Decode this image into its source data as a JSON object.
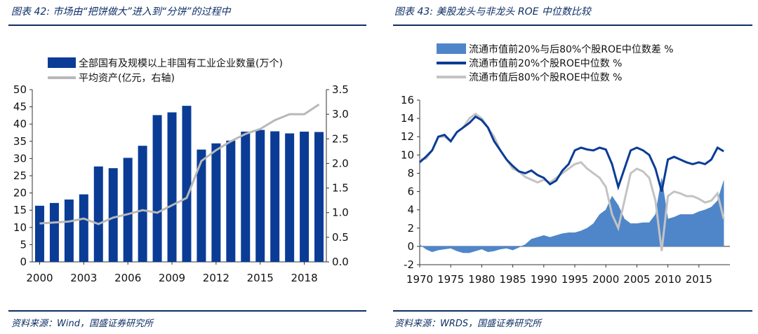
{
  "left": {
    "title": "图表 42: 市场由“把饼做大”进入到“分饼”的过程中",
    "source": "资料来源：Wind，国盛证券研究所",
    "colors": {
      "bar": "#0a3c96",
      "line": "#b8b8b8",
      "rule": "#0e2e66"
    },
    "chart_data": {
      "type": "bar",
      "x": [
        2000,
        2001,
        2002,
        2003,
        2004,
        2005,
        2006,
        2007,
        2008,
        2009,
        2010,
        2011,
        2012,
        2013,
        2014,
        2015,
        2016,
        2017,
        2018,
        2019
      ],
      "x_ticks": [
        "2000",
        "2003",
        "2006",
        "2009",
        "2012",
        "2015",
        "2018"
      ],
      "series": [
        {
          "name": "全部国有及规模以上非国有工业企业数量(万个)",
          "type": "bar",
          "axis": "left",
          "values": [
            16.3,
            17.1,
            18.1,
            19.6,
            27.7,
            27.2,
            30.2,
            33.7,
            42.6,
            43.4,
            45.3,
            32.6,
            34.4,
            35.2,
            37.8,
            38.3,
            37.9,
            37.3,
            37.8,
            37.7
          ]
        },
        {
          "name": "平均资产(亿元，右轴)",
          "type": "line",
          "axis": "right",
          "values": [
            0.78,
            0.8,
            0.82,
            0.88,
            0.77,
            0.9,
            0.97,
            1.05,
            1.0,
            1.15,
            1.3,
            2.05,
            2.27,
            2.45,
            2.6,
            2.7,
            2.88,
            3.0,
            3.0,
            3.2
          ]
        }
      ],
      "y_left": {
        "min": 0,
        "max": 50,
        "ticks": [
          "0",
          "5",
          "10",
          "15",
          "20",
          "25",
          "30",
          "35",
          "40",
          "45",
          "50"
        ]
      },
      "y_right": {
        "min": 0,
        "max": 3.5,
        "ticks": [
          "0.0",
          "0.5",
          "1.0",
          "1.5",
          "2.0",
          "2.5",
          "3.0",
          "3.5"
        ]
      },
      "legend_position": "top"
    }
  },
  "right": {
    "title": "图表 43: 美股龙头与非龙头 ROE 中位数比较",
    "source": "资料来源：WRDS，国盛证券研究所",
    "colors": {
      "area": "#4f86c9",
      "top": "#0a3c96",
      "bottom": "#c3c3c3"
    },
    "chart_data": {
      "type": "line",
      "x_ticks": [
        "1970",
        "1975",
        "1980",
        "1985",
        "1990",
        "1995",
        "2000",
        "2005",
        "2010",
        "2015"
      ],
      "x_range": [
        1970,
        2020
      ],
      "y": {
        "min": -2,
        "max": 16,
        "ticks": [
          "-2",
          "0",
          "2",
          "4",
          "6",
          "8",
          "10",
          "12",
          "14",
          "16"
        ]
      },
      "legend_position": "top",
      "series": [
        {
          "name": "流通市值前20%与后80%个股ROE中位数差 %",
          "type": "area",
          "points": [
            [
              1970,
              0.2
            ],
            [
              1971,
              -0.3
            ],
            [
              1972,
              -0.6
            ],
            [
              1973,
              -0.4
            ],
            [
              1974,
              -0.3
            ],
            [
              1975,
              -0.2
            ],
            [
              1976,
              -0.5
            ],
            [
              1977,
              -0.7
            ],
            [
              1978,
              -0.7
            ],
            [
              1979,
              -0.5
            ],
            [
              1980,
              -0.3
            ],
            [
              1981,
              -0.6
            ],
            [
              1982,
              -0.5
            ],
            [
              1983,
              -0.3
            ],
            [
              1984,
              -0.2
            ],
            [
              1985,
              -0.4
            ],
            [
              1986,
              -0.1
            ],
            [
              1987,
              0.2
            ],
            [
              1988,
              0.8
            ],
            [
              1989,
              1.0
            ],
            [
              1990,
              1.2
            ],
            [
              1991,
              1.0
            ],
            [
              1992,
              1.2
            ],
            [
              1993,
              1.4
            ],
            [
              1994,
              1.5
            ],
            [
              1995,
              1.5
            ],
            [
              1996,
              1.7
            ],
            [
              1997,
              2.0
            ],
            [
              1998,
              2.5
            ],
            [
              1999,
              3.5
            ],
            [
              2000,
              4.0
            ],
            [
              2001,
              5.5
            ],
            [
              2002,
              4.5
            ],
            [
              2003,
              3.0
            ],
            [
              2004,
              2.5
            ],
            [
              2005,
              2.5
            ],
            [
              2006,
              2.6
            ],
            [
              2007,
              2.6
            ],
            [
              2008,
              3.5
            ],
            [
              2009,
              7.5
            ],
            [
              2010,
              3.0
            ],
            [
              2011,
              3.2
            ],
            [
              2012,
              3.5
            ],
            [
              2013,
              3.5
            ],
            [
              2014,
              3.5
            ],
            [
              2015,
              3.8
            ],
            [
              2016,
              4.0
            ],
            [
              2017,
              4.3
            ],
            [
              2018,
              5.0
            ],
            [
              2019,
              7.2
            ]
          ]
        },
        {
          "name": "流通市值前20%个股ROE中位数 %",
          "type": "line",
          "points": [
            [
              1970,
              9.2
            ],
            [
              1971,
              9.8
            ],
            [
              1972,
              10.5
            ],
            [
              1973,
              12.0
            ],
            [
              1974,
              12.2
            ],
            [
              1975,
              11.5
            ],
            [
              1976,
              12.5
            ],
            [
              1977,
              13.0
            ],
            [
              1978,
              13.5
            ],
            [
              1979,
              14.2
            ],
            [
              1980,
              13.8
            ],
            [
              1981,
              13.0
            ],
            [
              1982,
              11.5
            ],
            [
              1983,
              10.5
            ],
            [
              1984,
              9.5
            ],
            [
              1985,
              8.8
            ],
            [
              1986,
              8.2
            ],
            [
              1987,
              8.0
            ],
            [
              1988,
              8.3
            ],
            [
              1989,
              7.8
            ],
            [
              1990,
              7.5
            ],
            [
              1991,
              6.8
            ],
            [
              1992,
              7.2
            ],
            [
              1993,
              8.3
            ],
            [
              1994,
              9.0
            ],
            [
              1995,
              10.5
            ],
            [
              1996,
              10.8
            ],
            [
              1997,
              10.6
            ],
            [
              1998,
              10.5
            ],
            [
              1999,
              10.8
            ],
            [
              2000,
              10.6
            ],
            [
              2001,
              9.0
            ],
            [
              2002,
              6.5
            ],
            [
              2003,
              8.5
            ],
            [
              2004,
              10.5
            ],
            [
              2005,
              10.8
            ],
            [
              2006,
              10.5
            ],
            [
              2007,
              10.0
            ],
            [
              2008,
              8.5
            ],
            [
              2009,
              6.0
            ],
            [
              2010,
              9.5
            ],
            [
              2011,
              9.8
            ],
            [
              2012,
              9.5
            ],
            [
              2013,
              9.2
            ],
            [
              2014,
              9.0
            ],
            [
              2015,
              9.2
            ],
            [
              2016,
              9.0
            ],
            [
              2017,
              9.5
            ],
            [
              2018,
              10.8
            ],
            [
              2019,
              10.4
            ]
          ]
        },
        {
          "name": "流通市值后80%个股ROE中位数 %",
          "type": "line",
          "points": [
            [
              1970,
              9.5
            ],
            [
              1971,
              9.6
            ],
            [
              1972,
              10.5
            ],
            [
              1973,
              12.0
            ],
            [
              1974,
              12.0
            ],
            [
              1975,
              11.5
            ],
            [
              1976,
              12.5
            ],
            [
              1977,
              13.0
            ],
            [
              1978,
              14.0
            ],
            [
              1979,
              14.5
            ],
            [
              1980,
              14.0
            ],
            [
              1981,
              13.0
            ],
            [
              1982,
              12.0
            ],
            [
              1983,
              10.5
            ],
            [
              1984,
              9.5
            ],
            [
              1985,
              8.5
            ],
            [
              1986,
              8.2
            ],
            [
              1987,
              7.6
            ],
            [
              1988,
              7.3
            ],
            [
              1989,
              7.0
            ],
            [
              1990,
              7.3
            ],
            [
              1991,
              7.0
            ],
            [
              1992,
              7.5
            ],
            [
              1993,
              8.0
            ],
            [
              1994,
              8.5
            ],
            [
              1995,
              9.0
            ],
            [
              1996,
              9.2
            ],
            [
              1997,
              8.5
            ],
            [
              1998,
              8.0
            ],
            [
              1999,
              7.5
            ],
            [
              2000,
              6.5
            ],
            [
              2001,
              3.5
            ],
            [
              2002,
              2.0
            ],
            [
              2003,
              5.0
            ],
            [
              2004,
              8.0
            ],
            [
              2005,
              8.5
            ],
            [
              2006,
              8.2
            ],
            [
              2007,
              7.5
            ],
            [
              2008,
              5.0
            ],
            [
              2009,
              -0.5
            ],
            [
              2010,
              5.5
            ],
            [
              2011,
              6.0
            ],
            [
              2012,
              5.8
            ],
            [
              2013,
              5.5
            ],
            [
              2014,
              5.5
            ],
            [
              2015,
              5.2
            ],
            [
              2016,
              4.8
            ],
            [
              2017,
              5.0
            ],
            [
              2018,
              5.8
            ],
            [
              2019,
              3.0
            ]
          ]
        }
      ]
    }
  }
}
